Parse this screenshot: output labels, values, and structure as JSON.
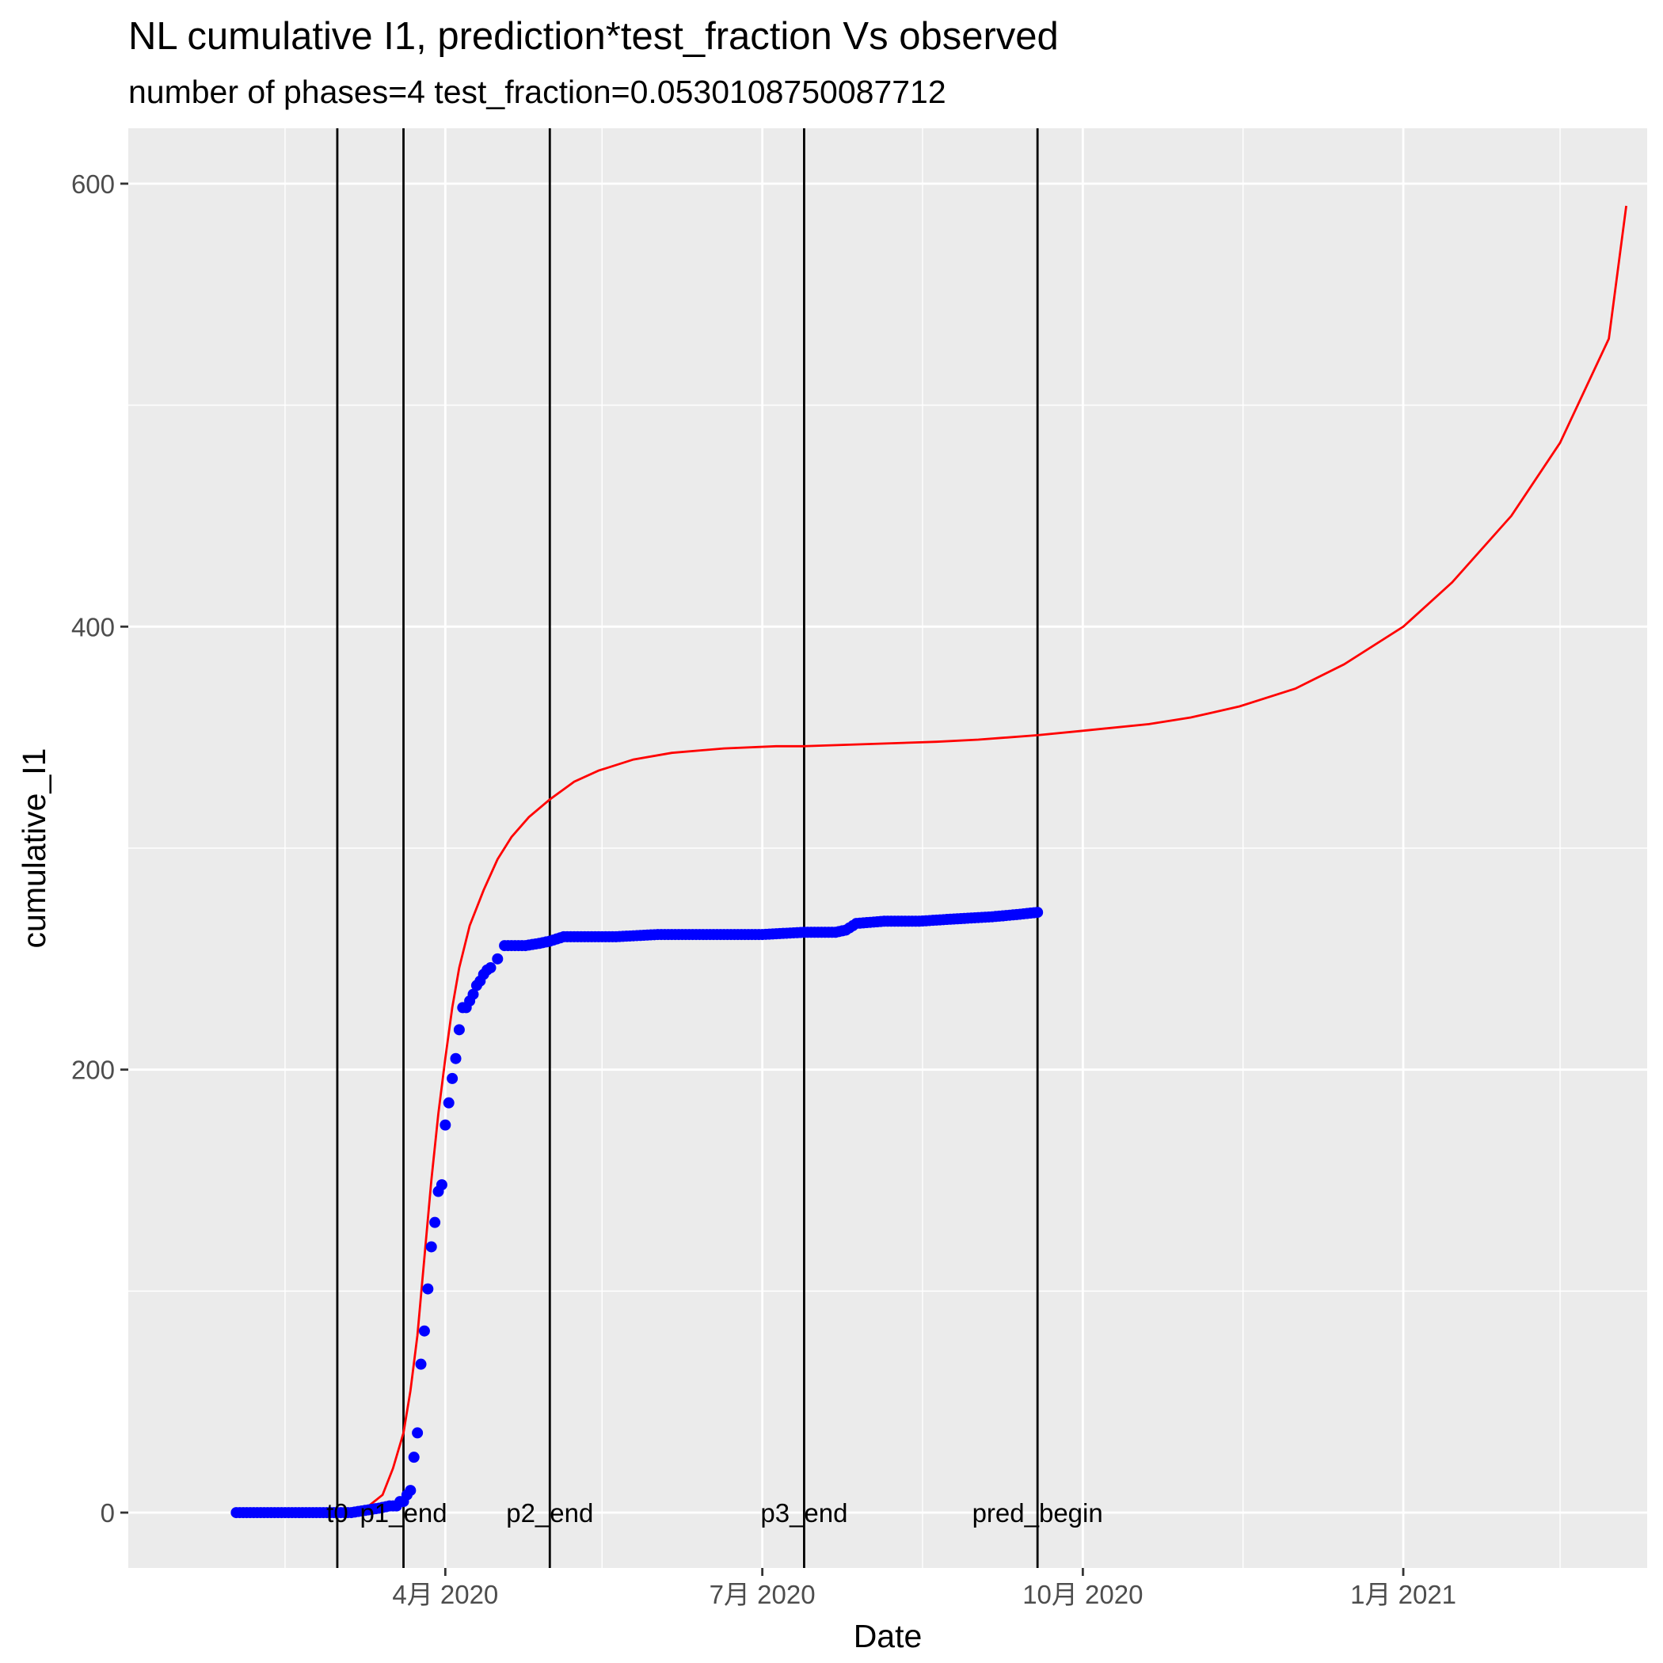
{
  "chart_data": {
    "type": "line",
    "title": "NL cumulative I1,  prediction*test_fraction Vs observed",
    "subtitle": "number of phases=4      test_fraction=0.0530108750087712",
    "xlabel": "Date",
    "ylabel": "cumulative_I1",
    "x_type": "date",
    "xlim": [
      "2020-01-01",
      "2021-03-12"
    ],
    "ylim": [
      -25,
      625
    ],
    "y_ticks": [
      0,
      200,
      400,
      600
    ],
    "y_tick_labels": [
      "0",
      "200",
      "400",
      "600"
    ],
    "y_minor_ticks": [
      100,
      300,
      500
    ],
    "x_ticks": [
      "2020-04-01",
      "2020-07-01",
      "2020-10-01",
      "2021-01-01"
    ],
    "x_tick_labels": [
      "4月 2020",
      "7月 2020",
      "10月 2020",
      "1月 2021"
    ],
    "x_minor_ticks": [
      "2020-02-15",
      "2020-05-16",
      "2020-08-16",
      "2020-11-16",
      "2021-02-15"
    ],
    "grid": true,
    "legend": "none",
    "colors": {
      "panel": "#ebebeb",
      "grid": "#ffffff",
      "prediction": "#ff0000",
      "observed": "#0000ff",
      "vline": "#000000"
    },
    "vlines": [
      {
        "x": "2020-03-01",
        "label": "t0"
      },
      {
        "x": "2020-03-20",
        "label": "p1_end"
      },
      {
        "x": "2020-05-01",
        "label": "p2_end"
      },
      {
        "x": "2020-07-13",
        "label": "p3_end"
      },
      {
        "x": "2020-09-18",
        "label": "pred_begin"
      }
    ],
    "series": [
      {
        "kind": "line",
        "x": [
          "2020-02-26",
          "2020-03-01",
          "2020-03-05",
          "2020-03-10",
          "2020-03-14",
          "2020-03-17",
          "2020-03-20",
          "2020-03-22",
          "2020-03-24",
          "2020-03-26",
          "2020-03-28",
          "2020-03-30",
          "2020-04-01",
          "2020-04-03",
          "2020-04-05",
          "2020-04-08",
          "2020-04-12",
          "2020-04-16",
          "2020-04-20",
          "2020-04-25",
          "2020-05-01",
          "2020-05-08",
          "2020-05-15",
          "2020-05-25",
          "2020-06-05",
          "2020-06-20",
          "2020-07-05",
          "2020-07-13",
          "2020-08-01",
          "2020-08-20",
          "2020-09-01",
          "2020-09-18",
          "2020-10-01",
          "2020-10-20",
          "2020-11-01",
          "2020-11-15",
          "2020-12-01",
          "2020-12-15",
          "2021-01-01",
          "2021-01-15",
          "2021-02-01",
          "2021-02-15",
          "2021-03-01",
          "2021-03-06"
        ],
        "y": [
          0,
          0,
          1,
          3,
          8,
          20,
          36,
          55,
          80,
          115,
          150,
          180,
          205,
          228,
          246,
          265,
          281,
          295,
          305,
          314,
          322,
          330,
          335,
          340,
          343,
          345,
          346,
          346,
          347,
          348,
          349,
          351,
          353,
          356,
          359,
          364,
          372,
          383,
          400,
          420,
          450,
          483,
          530,
          590
        ]
      },
      {
        "kind": "points",
        "x": [
          "2020-02-01",
          "2020-02-05",
          "2020-02-10",
          "2020-02-15",
          "2020-02-20",
          "2020-02-25",
          "2020-03-01",
          "2020-03-05",
          "2020-03-09",
          "2020-03-13",
          "2020-03-16",
          "2020-03-18",
          "2020-03-19",
          "2020-03-20",
          "2020-03-21",
          "2020-03-22",
          "2020-03-23",
          "2020-03-24",
          "2020-03-25",
          "2020-03-26",
          "2020-03-27",
          "2020-03-28",
          "2020-03-29",
          "2020-03-30",
          "2020-03-31",
          "2020-04-01",
          "2020-04-02",
          "2020-04-03",
          "2020-04-04",
          "2020-04-05",
          "2020-04-06",
          "2020-04-07",
          "2020-04-08",
          "2020-04-09",
          "2020-04-10",
          "2020-04-11",
          "2020-04-12",
          "2020-04-13",
          "2020-04-14",
          "2020-04-16",
          "2020-04-18",
          "2020-04-21",
          "2020-04-24",
          "2020-04-28",
          "2020-05-01",
          "2020-05-05",
          "2020-05-10",
          "2020-05-20",
          "2020-06-01",
          "2020-06-15",
          "2020-07-01",
          "2020-07-13",
          "2020-07-22",
          "2020-07-25",
          "2020-07-28",
          "2020-08-05",
          "2020-08-10",
          "2020-08-15",
          "2020-08-25",
          "2020-09-05",
          "2020-09-12",
          "2020-09-18"
        ],
        "y": [
          0,
          0,
          0,
          0,
          0,
          0,
          0,
          0,
          1,
          2,
          3,
          3,
          5,
          5,
          8,
          10,
          25,
          36,
          67,
          82,
          101,
          120,
          131,
          145,
          148,
          175,
          185,
          196,
          205,
          218,
          228,
          228,
          231,
          234,
          238,
          240,
          243,
          245,
          246,
          250,
          256,
          256,
          256,
          257,
          258,
          260,
          260,
          260,
          261,
          261,
          261,
          262,
          262,
          263,
          266,
          267,
          267,
          267,
          268,
          269,
          270,
          271
        ]
      }
    ]
  }
}
